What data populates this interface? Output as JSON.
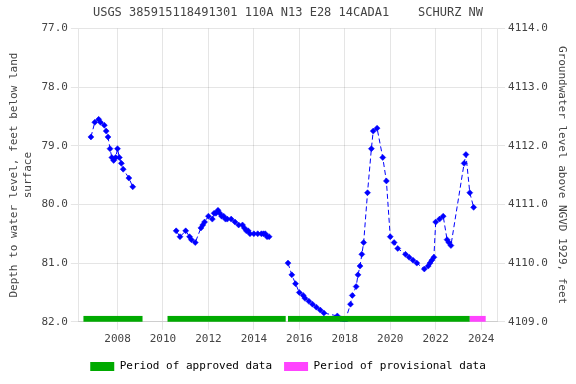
{
  "chart_data": {
    "type": "line",
    "title": "USGS 385915118491301 110A N13 E28 14CADA1    SCHURZ NW",
    "ylabel": "Depth to water level, feet below land\nsurface",
    "y2label": "Groundwater level above NGVD 1929, feet",
    "series": [
      {
        "color": "#0000ff",
        "marker": "diamond",
        "line_style": "dashed",
        "x": [
          2006.83,
          2007.0,
          2007.17,
          2007.25,
          2007.42,
          2007.5,
          2007.58,
          2007.67,
          2007.75,
          2007.83,
          2007.92,
          2008.0,
          2008.08,
          2008.17,
          2008.25,
          2008.5,
          2008.67
        ],
        "values": [
          78.85,
          78.6,
          78.55,
          78.6,
          78.65,
          78.75,
          78.85,
          79.05,
          79.2,
          79.25,
          79.2,
          79.05,
          79.2,
          79.3,
          79.4,
          79.55,
          79.7
        ]
      },
      {
        "color": "#0000ff",
        "marker": "diamond",
        "line_style": "dashed",
        "x": [
          2010.58,
          2010.75,
          2011.0,
          2011.17,
          2011.25,
          2011.42,
          2011.67,
          2011.75,
          2011.83,
          2012.0,
          2012.17,
          2012.25,
          2012.33,
          2012.42,
          2012.5,
          2012.58,
          2012.67,
          2012.75,
          2012.83,
          2013.0,
          2013.17,
          2013.33,
          2013.5,
          2013.58,
          2013.67,
          2013.75,
          2013.83,
          2014.0,
          2014.17,
          2014.33,
          2014.42,
          2014.5,
          2014.58,
          2014.67
        ],
        "values": [
          80.45,
          80.55,
          80.45,
          80.55,
          80.6,
          80.65,
          80.4,
          80.35,
          80.3,
          80.2,
          80.25,
          80.15,
          80.15,
          80.1,
          80.15,
          80.2,
          80.2,
          80.25,
          80.25,
          80.25,
          80.3,
          80.35,
          80.35,
          80.4,
          80.45,
          80.45,
          80.5,
          80.5,
          80.5,
          80.5,
          80.5,
          80.5,
          80.55,
          80.55
        ]
      },
      {
        "color": "#0000ff",
        "marker": "diamond",
        "line_style": "dashed",
        "x": [
          2015.5,
          2015.67,
          2015.83,
          2016.0,
          2016.17,
          2016.25,
          2016.42,
          2016.58,
          2016.75,
          2016.92,
          2017.08,
          2017.67,
          2017.83,
          2018.0,
          2018.25,
          2018.33,
          2018.5,
          2018.58,
          2018.67,
          2018.75,
          2018.83,
          2019.0,
          2019.17,
          2019.25,
          2019.42,
          2019.67,
          2019.83,
          2020.0,
          2020.17,
          2020.33,
          2020.67,
          2020.83,
          2021.0,
          2021.17,
          2021.5,
          2021.67,
          2021.75,
          2021.83,
          2021.92,
          2022.0,
          2022.17,
          2022.33,
          2022.5,
          2022.58,
          2022.67,
          2023.25,
          2023.33,
          2023.5,
          2023.67
        ],
        "values": [
          81.0,
          81.2,
          81.35,
          81.5,
          81.55,
          81.6,
          81.65,
          81.7,
          81.75,
          81.8,
          81.85,
          81.9,
          81.95,
          82.0,
          81.7,
          81.55,
          81.4,
          81.2,
          81.05,
          80.85,
          80.65,
          79.8,
          79.05,
          78.75,
          78.7,
          79.2,
          79.6,
          80.55,
          80.65,
          80.75,
          80.85,
          80.9,
          80.95,
          81.0,
          81.1,
          81.05,
          81.0,
          80.95,
          80.9,
          80.3,
          80.25,
          80.2,
          80.6,
          80.65,
          80.7,
          79.3,
          79.15,
          79.8,
          80.05
        ]
      }
    ],
    "bars": [
      {
        "name": "Period of approved data",
        "color": "#00aa00",
        "spans": [
          [
            2006.5,
            2009.1
          ],
          [
            2010.2,
            2015.4
          ],
          [
            2015.5,
            2023.5
          ]
        ]
      },
      {
        "name": "Period of provisional data",
        "color": "#ff44ff",
        "spans": [
          [
            2023.5,
            2024.2
          ]
        ]
      }
    ],
    "bar_y": 82.0,
    "bar_height": 0.1,
    "xlim": [
      2006.3,
      2024.7
    ],
    "xticks": [
      2008,
      2010,
      2012,
      2014,
      2016,
      2018,
      2020,
      2022,
      2024
    ],
    "ylim": [
      82.0,
      77.0
    ],
    "yticks": [
      {
        "value": 77.0,
        "label": "77.0"
      },
      {
        "value": 78.0,
        "label": "78.0"
      },
      {
        "value": 79.0,
        "label": "79.0"
      },
      {
        "value": 80.0,
        "label": "80.0"
      },
      {
        "value": 81.0,
        "label": "81.0"
      },
      {
        "value": 82.0,
        "label": "82.0"
      }
    ],
    "y2lim": [
      4109.0,
      4114.0
    ],
    "y2ticks": [
      {
        "value": 4109.0,
        "label": "4109.0"
      },
      {
        "value": 4110.0,
        "label": "4110.0"
      },
      {
        "value": 4111.0,
        "label": "4111.0"
      },
      {
        "value": 4112.0,
        "label": "4112.0"
      },
      {
        "value": 4113.0,
        "label": "4113.0"
      },
      {
        "value": 4114.0,
        "label": "4114.0"
      }
    ],
    "grid": true,
    "legend": "bottom"
  }
}
